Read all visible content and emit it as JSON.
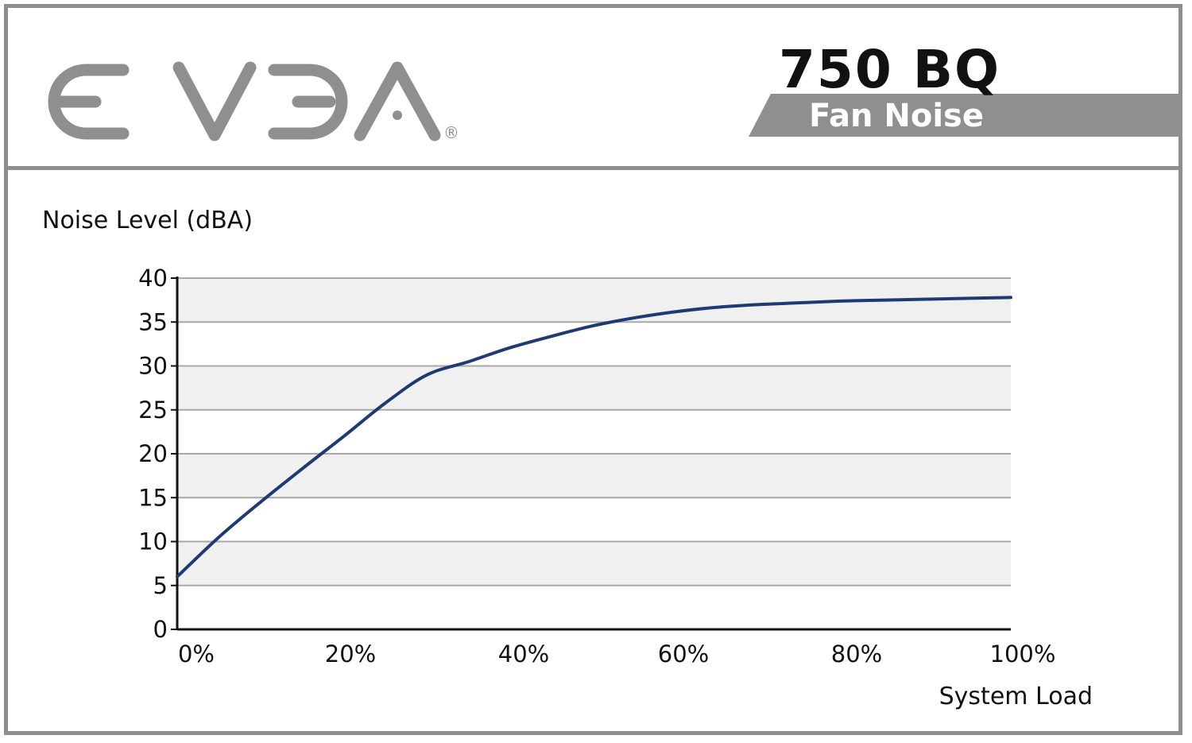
{
  "header": {
    "brand": "EVGA",
    "registered_mark": "®",
    "model": "750 BQ",
    "subtitle": "Fan Noise",
    "brand_color": "#8f8f8f",
    "model_color": "#111111",
    "banner_color": "#8f8f8f"
  },
  "chart_data": {
    "type": "line",
    "ylabel": "Noise Level (dBA)",
    "xlabel": "System Load",
    "x_ticks": [
      "0%",
      "20%",
      "40%",
      "60%",
      "80%",
      "100%"
    ],
    "y_ticks": [
      "0",
      "5",
      "10",
      "15",
      "20",
      "25",
      "30",
      "35",
      "40"
    ],
    "xlim": [
      0,
      100
    ],
    "ylim": [
      0,
      40
    ],
    "grid": true,
    "series": [
      {
        "color": "#1f3a73",
        "x": [
          0,
          5,
          10,
          15,
          20,
          25,
          30,
          35,
          40,
          45,
          50,
          55,
          60,
          65,
          70,
          75,
          80,
          85,
          90,
          95,
          100
        ],
        "y": [
          6,
          10.5,
          14.5,
          18.3,
          22,
          25.8,
          29,
          30.5,
          32.1,
          33.4,
          34.6,
          35.5,
          36.2,
          36.7,
          37.0,
          37.2,
          37.4,
          37.5,
          37.6,
          37.7,
          37.8
        ]
      }
    ]
  }
}
